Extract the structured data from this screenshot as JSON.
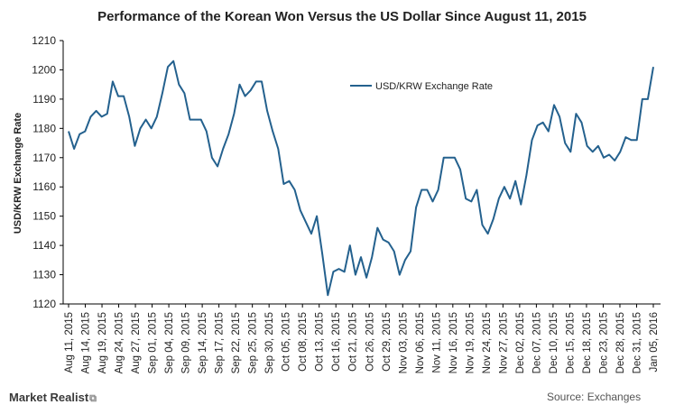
{
  "brand": "Market Realist",
  "brand_symbol": "⧉",
  "source": "Source: Exchanges",
  "chart_data": {
    "type": "line",
    "title": "Performance of the Korean Won Versus the US Dollar Since August 11, 2015",
    "ylabel": "USD/KRW Exchange Rate",
    "xlabel": "",
    "ylim": [
      1120,
      1210
    ],
    "yticks": [
      1120,
      1130,
      1140,
      1150,
      1160,
      1170,
      1180,
      1190,
      1200,
      1210
    ],
    "legend": "top-center",
    "grid": false,
    "line_color": "#24618e",
    "xtick_labels": [
      "Aug 11, 2015",
      "Aug 14, 2015",
      "Aug 19, 2015",
      "Aug 24, 2015",
      "Aug 27, 2015",
      "Sep 01, 2015",
      "Sep 04, 2015",
      "Sep 09, 2015",
      "Sep 14, 2015",
      "Sep 17, 2015",
      "Sep 22, 2015",
      "Sep 25, 2015",
      "Sep 30, 2015",
      "Oct 05, 2015",
      "Oct 08, 2015",
      "Oct 13, 2015",
      "Oct 16, 2015",
      "Oct 21, 2015",
      "Oct 26, 2015",
      "Oct 29, 2015",
      "Nov 03, 2015",
      "Nov 06, 2015",
      "Nov 11, 2015",
      "Nov 16, 2015",
      "Nov 19, 2015",
      "Nov 24, 2015",
      "Nov 27, 2015",
      "Dec 02, 2015",
      "Dec 07, 2015",
      "Dec 10, 2015",
      "Dec 15, 2015",
      "Dec 18, 2015",
      "Dec 23, 2015",
      "Dec 28, 2015",
      "Dec 31, 2015",
      "Jan 05, 2016"
    ],
    "series": [
      {
        "name": "USD/KRW Exchange Rate",
        "values": [
          1179,
          1173,
          1178,
          1179,
          1184,
          1186,
          1184,
          1185,
          1196,
          1191,
          1191,
          1184,
          1174,
          1180,
          1183,
          1180,
          1184,
          1192,
          1201,
          1203,
          1195,
          1192,
          1183,
          1183,
          1183,
          1179,
          1170,
          1167,
          1173,
          1178,
          1185,
          1195,
          1191,
          1193,
          1196,
          1196,
          1186,
          1179,
          1173,
          1161,
          1162,
          1159,
          1152,
          1148,
          1144,
          1150,
          1137,
          1123,
          1131,
          1132,
          1131,
          1140,
          1130,
          1136,
          1129,
          1136,
          1146,
          1142,
          1141,
          1138,
          1130,
          1135,
          1138,
          1153,
          1159,
          1159,
          1155,
          1159,
          1170,
          1170,
          1170,
          1166,
          1156,
          1155,
          1159,
          1147,
          1144,
          1149,
          1156,
          1160,
          1156,
          1162,
          1154,
          1164,
          1176,
          1181,
          1182,
          1179,
          1188,
          1184,
          1175,
          1172,
          1185,
          1182,
          1174,
          1172,
          1174,
          1170,
          1171,
          1169,
          1172,
          1177,
          1176,
          1176,
          1190,
          1190,
          1201
        ]
      }
    ]
  }
}
